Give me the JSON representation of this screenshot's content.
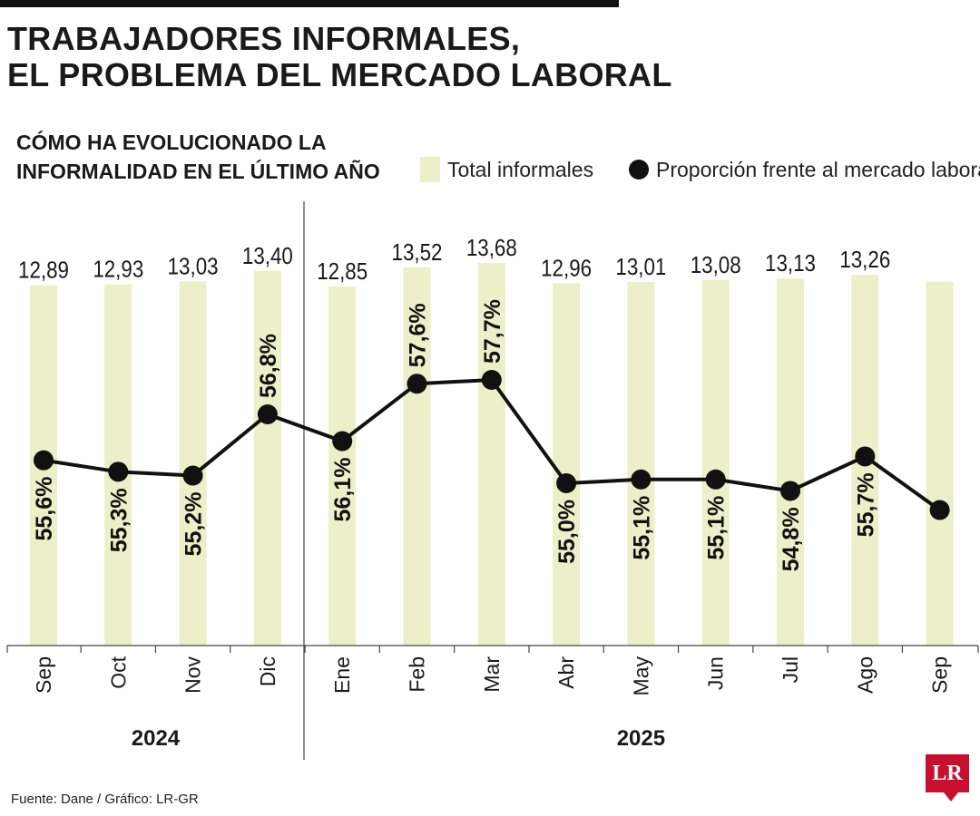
{
  "header": {
    "title_line1": "TRABAJADORES INFORMALES,",
    "title_line2": "EL PROBLEMA DEL MERCADO LABORAL"
  },
  "chart_data": {
    "type": "bar",
    "title_line1": "CÓMO HA EVOLUCIONADO LA",
    "title_line2": "INFORMALIDAD EN EL ÚLTIMO AÑO",
    "categories": [
      "Sep",
      "Oct",
      "Nov",
      "Dic",
      "Ene",
      "Feb",
      "Mar",
      "Abr",
      "May",
      "Jun",
      "Jul",
      "Ago",
      "Sep"
    ],
    "year_groups": [
      {
        "label": "2024",
        "start": 0,
        "end": 3
      },
      {
        "label": "2025",
        "start": 4,
        "end": 12
      }
    ],
    "series": [
      {
        "name": "Total informales",
        "type": "bar",
        "values": [
          12.89,
          12.93,
          13.03,
          13.4,
          12.85,
          13.52,
          13.68,
          12.96,
          13.01,
          13.08,
          13.13,
          13.26,
          13.02
        ],
        "labels": [
          "12,89",
          "12,93",
          "13,03",
          "13,40",
          "12,85",
          "13,52",
          "13,68",
          "12,96",
          "13,01",
          "13,08",
          "13,13",
          "13,26",
          ""
        ],
        "color": "#ecefc8"
      },
      {
        "name": "Proporción frente al mercado laboral",
        "type": "line",
        "values": [
          55.6,
          55.3,
          55.2,
          56.8,
          56.1,
          57.6,
          57.7,
          55.0,
          55.1,
          55.1,
          54.8,
          55.7,
          54.3
        ],
        "labels": [
          "55,6%",
          "55,3%",
          "55,2%",
          "56,8%",
          "56,1%",
          "57,6%",
          "57,7%",
          "55,0%",
          "55,1%",
          "55,1%",
          "54,8%",
          "55,7%",
          ""
        ],
        "color": "#111111"
      }
    ],
    "legend": "top-right",
    "grid": false
  },
  "footer": {
    "source": "Fuente: Dane / Gráfico: LR-GR",
    "logo_text": "LR"
  },
  "colors": {
    "bar": "#ecefc8",
    "line": "#111111",
    "text": "#1a1a1a",
    "logo": "#c8102e"
  }
}
